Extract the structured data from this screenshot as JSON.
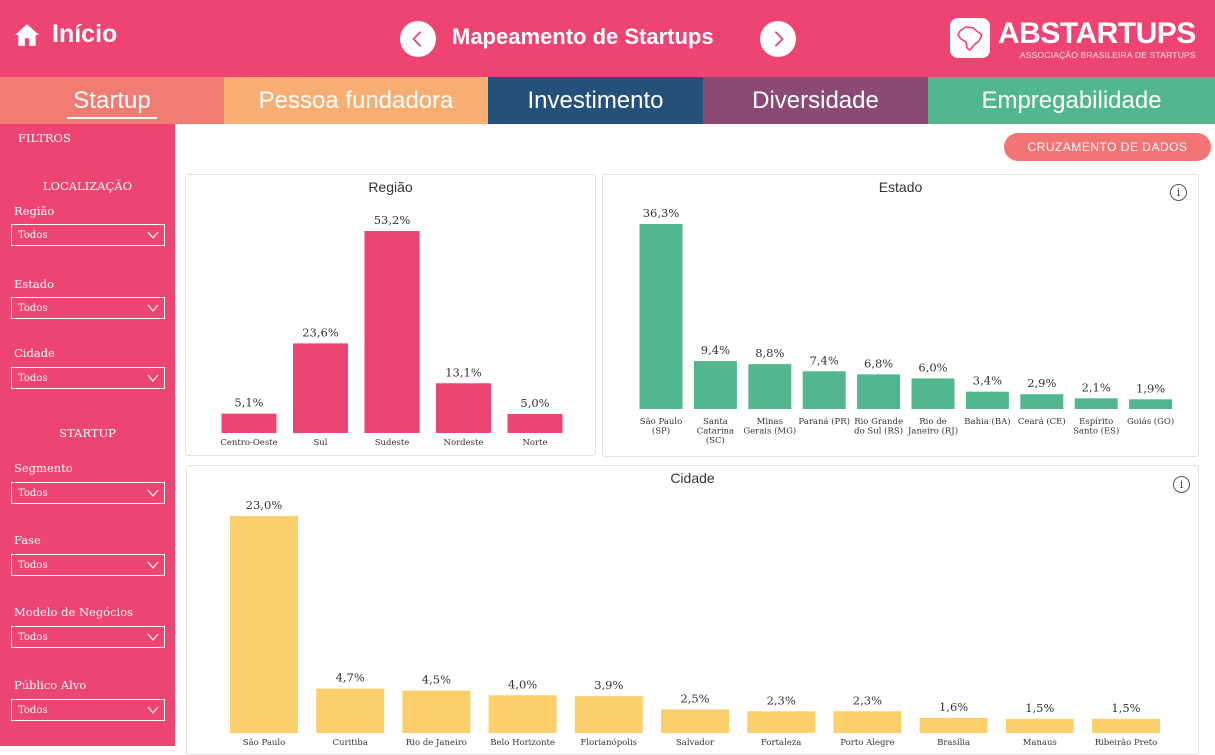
{
  "header": {
    "home_label": "Início",
    "title": "Mapeamento de Startups",
    "brand_name": "ABSTARTUPS",
    "brand_sub": "ASSOCIAÇÃO BRASILEIRA DE STARTUPS"
  },
  "tabs": [
    {
      "label": "Startup",
      "color": "#f07c73"
    },
    {
      "label": "Pessoa fundadora",
      "color": "#f8ae72"
    },
    {
      "label": "Investimento",
      "color": "#245079"
    },
    {
      "label": "Diversidade",
      "color": "#8b4a73"
    },
    {
      "label": "Empregabilidade",
      "color": "#52b78f"
    }
  ],
  "sidebar": {
    "filters_label": "FILTROS",
    "sections": {
      "location": "LOCALIZAÇÃO",
      "startup": "STARTUP"
    },
    "filters": [
      {
        "label": "Região",
        "value": "Todos"
      },
      {
        "label": "Estado",
        "value": "Todos"
      },
      {
        "label": "Cidade",
        "value": "Todos"
      },
      {
        "label": "Segmento",
        "value": "Todos"
      },
      {
        "label": "Fase",
        "value": "Todos"
      },
      {
        "label": "Modelo de Negócios",
        "value": "Todos"
      },
      {
        "label": "Público Alvo",
        "value": "Todos"
      }
    ]
  },
  "main": {
    "cross_button": "CRUZAMENTO DE DADOS",
    "info_glyph": "i"
  },
  "chart_data": [
    {
      "type": "bar",
      "title": "Região",
      "color": "#ed4473",
      "categories": [
        "Centro-Oeste",
        "Sul",
        "Sudeste",
        "Nordeste",
        "Norte"
      ],
      "values": [
        5.1,
        23.6,
        53.2,
        13.1,
        5.0
      ],
      "labels": [
        "5,1%",
        "23,6%",
        "53,2%",
        "13,1%",
        "5,0%"
      ]
    },
    {
      "type": "bar",
      "title": "Estado",
      "color": "#52b78f",
      "categories": [
        [
          "São Paulo",
          "(SP)"
        ],
        [
          "Santa",
          "Catarina",
          "(SC)"
        ],
        [
          "Minas",
          "Gerais (MG)"
        ],
        [
          "Paraná (PR)"
        ],
        [
          "Rio Grande",
          "do Sul (RS)"
        ],
        [
          "Rio de",
          "Janeiro (RJ)"
        ],
        [
          "Bahia (BA)"
        ],
        [
          "Ceará (CE)"
        ],
        [
          "Espírito",
          "Santo (ES)"
        ],
        [
          "Goiás (GO)"
        ]
      ],
      "values": [
        36.3,
        9.4,
        8.8,
        7.4,
        6.8,
        6.0,
        3.4,
        2.9,
        2.1,
        1.9
      ],
      "labels": [
        "36,3%",
        "9,4%",
        "8,8%",
        "7,4%",
        "6,8%",
        "6,0%",
        "3,4%",
        "2,9%",
        "2,1%",
        "1,9%"
      ]
    },
    {
      "type": "bar",
      "title": "Cidade",
      "color": "#fad06d",
      "categories": [
        "São Paulo",
        "Curitiba",
        "Rio de Janeiro",
        "Belo Horizonte",
        "Florianópolis",
        "Salvador",
        "Fortaleza",
        "Porto Alegre",
        "Brasília",
        "Manaus",
        "Ribeirão Preto"
      ],
      "values": [
        23.0,
        4.7,
        4.5,
        4.0,
        3.9,
        2.5,
        2.3,
        2.3,
        1.6,
        1.5,
        1.5
      ],
      "labels": [
        "23,0%",
        "4,7%",
        "4,5%",
        "4,0%",
        "3,9%",
        "2,5%",
        "2,3%",
        "2,3%",
        "1,6%",
        "1,5%",
        "1,5%"
      ]
    }
  ]
}
